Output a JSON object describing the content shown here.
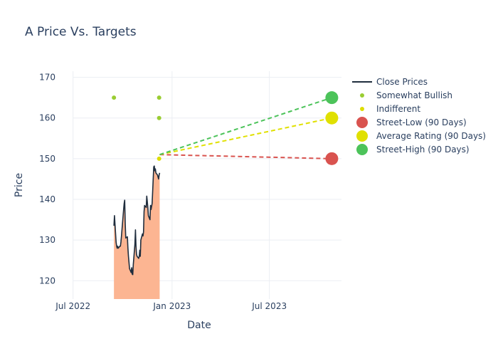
{
  "chart_data": {
    "type": "line",
    "title": "A Price Vs. Targets",
    "xlabel": "Date",
    "ylabel": "Price",
    "xlim": [
      "2022-06-01",
      "2023-11-12"
    ],
    "ylim": [
      115.5,
      171.5
    ],
    "grid": true,
    "legend_position": "right",
    "x_ticks": [
      {
        "date": "2022-07-01",
        "label": "Jul 2022"
      },
      {
        "date": "2023-01-01",
        "label": "Jan 2023"
      },
      {
        "date": "2023-07-01",
        "label": "Jul 2023"
      }
    ],
    "y_ticks": [
      120,
      130,
      140,
      150,
      160,
      170
    ],
    "series": [
      {
        "name": "Close Prices",
        "kind": "line_area",
        "color": "#1f2d3d",
        "fill": "#fcb592",
        "points": [
          [
            "2022-09-15",
            133.5
          ],
          [
            "2022-09-16",
            136.0
          ],
          [
            "2022-09-19",
            129.5
          ],
          [
            "2022-09-20",
            128.5
          ],
          [
            "2022-09-21",
            128.0
          ],
          [
            "2022-09-22",
            128.5
          ],
          [
            "2022-09-23",
            128.0
          ],
          [
            "2022-09-26",
            128.5
          ],
          [
            "2022-09-27",
            128.5
          ],
          [
            "2022-09-28",
            129.5
          ],
          [
            "2022-09-29",
            131.0
          ],
          [
            "2022-10-03",
            137.5
          ],
          [
            "2022-10-04",
            139.0
          ],
          [
            "2022-10-05",
            139.8
          ],
          [
            "2022-10-06",
            134.0
          ],
          [
            "2022-10-07",
            130.5
          ],
          [
            "2022-10-10",
            130.8
          ],
          [
            "2022-10-11",
            128.0
          ],
          [
            "2022-10-12",
            126.0
          ],
          [
            "2022-10-13",
            124.5
          ],
          [
            "2022-10-14",
            123.0
          ],
          [
            "2022-10-17",
            122.0
          ],
          [
            "2022-10-18",
            123.2
          ],
          [
            "2022-10-19",
            121.6
          ],
          [
            "2022-10-20",
            121.5
          ],
          [
            "2022-10-21",
            124.0
          ],
          [
            "2022-10-24",
            129.0
          ],
          [
            "2022-10-25",
            132.5
          ],
          [
            "2022-10-26",
            128.5
          ],
          [
            "2022-10-27",
            126.5
          ],
          [
            "2022-10-28",
            126.0
          ],
          [
            "2022-10-31",
            125.5
          ],
          [
            "2022-11-01",
            126.0
          ],
          [
            "2022-11-02",
            127.5
          ],
          [
            "2022-11-03",
            126.0
          ],
          [
            "2022-11-04",
            130.0
          ],
          [
            "2022-11-07",
            131.5
          ],
          [
            "2022-11-08",
            131.0
          ],
          [
            "2022-11-09",
            132.0
          ],
          [
            "2022-11-10",
            137.0
          ],
          [
            "2022-11-11",
            138.5
          ],
          [
            "2022-11-14",
            138.0
          ],
          [
            "2022-11-15",
            140.8
          ],
          [
            "2022-11-16",
            139.5
          ],
          [
            "2022-11-17",
            138.0
          ],
          [
            "2022-11-18",
            136.0
          ],
          [
            "2022-11-21",
            135.0
          ],
          [
            "2022-11-22",
            138.5
          ],
          [
            "2022-11-23",
            137.5
          ],
          [
            "2022-11-25",
            139.0
          ],
          [
            "2022-11-28",
            148.0
          ],
          [
            "2022-11-29",
            148.2
          ],
          [
            "2022-11-30",
            147.0
          ],
          [
            "2022-12-01",
            147.5
          ],
          [
            "2022-12-02",
            146.5
          ],
          [
            "2022-12-05",
            146.0
          ],
          [
            "2022-12-06",
            145.5
          ],
          [
            "2022-12-07",
            145.0
          ],
          [
            "2022-12-08",
            146.0
          ],
          [
            "2022-12-09",
            146.5
          ]
        ]
      },
      {
        "name": "Somewhat Bullish",
        "kind": "markers",
        "color": "#9acd32",
        "points": [
          [
            "2022-09-15",
            165
          ],
          [
            "2022-12-08",
            165
          ],
          [
            "2022-12-08",
            160
          ]
        ]
      },
      {
        "name": "Indifferent",
        "kind": "markers",
        "color": "#dddd00",
        "points": [
          [
            "2022-12-08",
            150
          ]
        ]
      },
      {
        "name": "Street-Low (90 Days)",
        "kind": "target",
        "color": "#d9534f",
        "from": [
          "2022-12-09",
          151.0
        ],
        "to": [
          "2023-10-25",
          150
        ]
      },
      {
        "name": "Average Rating (90 Days)",
        "kind": "target",
        "color": "#e0e000",
        "from": [
          "2022-12-09",
          151.0
        ],
        "to": [
          "2023-10-25",
          160
        ]
      },
      {
        "name": "Street-High (90 Days)",
        "kind": "target",
        "color": "#4cc35a",
        "from": [
          "2022-12-09",
          151.0
        ],
        "to": [
          "2023-10-25",
          165
        ]
      }
    ]
  }
}
